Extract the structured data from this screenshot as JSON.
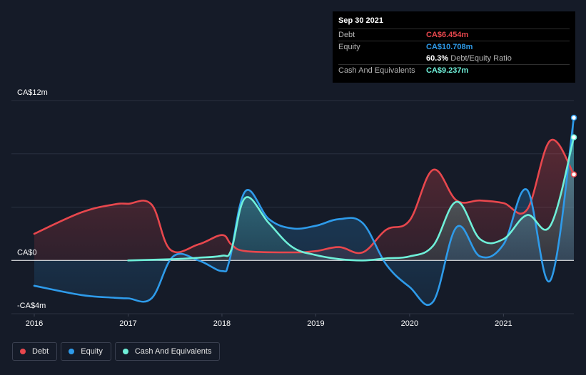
{
  "tooltip": {
    "date": "Sep 30 2021",
    "rows": [
      {
        "label": "Debt",
        "value": "CA$6.454m",
        "color": "#e8474d"
      },
      {
        "label": "Equity",
        "value": "CA$10.708m",
        "color": "#2e9bea"
      },
      {
        "label": "",
        "value": "60.3%",
        "sub": "Debt/Equity Ratio",
        "color": "#ffffff"
      },
      {
        "label": "Cash And Equivalents",
        "value": "CA$9.237m",
        "color": "#6ff0d9"
      }
    ]
  },
  "legend": [
    {
      "label": "Debt",
      "color": "#e8474d"
    },
    {
      "label": "Equity",
      "color": "#2e9bea"
    },
    {
      "label": "Cash And Equivalents",
      "color": "#6ff0d9"
    }
  ],
  "chart_data": {
    "type": "area",
    "y_tick_labels": [
      {
        "value": 12,
        "label": "CA$12m"
      },
      {
        "value": 0,
        "label": "CA$0"
      },
      {
        "value": -4,
        "label": "-CA$4m"
      }
    ],
    "ylim": [
      -4,
      12
    ],
    "xlim": [
      2016,
      2021.75
    ],
    "x_ticks": [
      2016,
      2017,
      2018,
      2019,
      2020,
      2021
    ],
    "x_tick_labels": [
      "2016",
      "2017",
      "2018",
      "2019",
      "2020",
      "2021"
    ],
    "series": [
      {
        "name": "Debt",
        "color": "#e8474d",
        "x": [
          2016.0,
          2016.5,
          2016.85,
          2017.0,
          2017.25,
          2017.45,
          2017.75,
          2018.0,
          2018.1,
          2018.25,
          2018.75,
          2019.0,
          2019.25,
          2019.5,
          2019.75,
          2020.0,
          2020.25,
          2020.5,
          2020.75,
          2021.0,
          2021.25,
          2021.5,
          2021.75
        ],
        "y": [
          2.0,
          3.6,
          4.2,
          4.25,
          4.2,
          0.8,
          1.2,
          1.9,
          1.2,
          0.7,
          0.6,
          0.7,
          1.0,
          0.6,
          2.3,
          3.0,
          6.8,
          4.5,
          4.5,
          4.3,
          3.8,
          9.0,
          6.454
        ]
      },
      {
        "name": "Equity",
        "color": "#2e9bea",
        "x": [
          2016.0,
          2016.5,
          2016.85,
          2017.0,
          2017.25,
          2017.48,
          2017.75,
          2018.0,
          2018.08,
          2018.25,
          2018.5,
          2018.75,
          2019.0,
          2019.25,
          2019.5,
          2019.75,
          2020.0,
          2020.25,
          2020.5,
          2020.75,
          2021.0,
          2021.25,
          2021.5,
          2021.75
        ],
        "y": [
          -1.9,
          -2.6,
          -2.8,
          -2.85,
          -2.85,
          0.3,
          0.0,
          -0.8,
          0.0,
          5.2,
          3.1,
          2.4,
          2.6,
          3.1,
          2.8,
          -0.3,
          -2.0,
          -3.1,
          2.5,
          0.3,
          1.2,
          5.3,
          -1.5,
          10.708
        ]
      },
      {
        "name": "Cash And Equivalents",
        "color": "#6ff0d9",
        "x": [
          2017.0,
          2017.5,
          2017.75,
          2018.0,
          2018.1,
          2018.25,
          2018.5,
          2018.75,
          2019.0,
          2019.25,
          2019.5,
          2019.75,
          2020.0,
          2020.25,
          2020.5,
          2020.75,
          2021.0,
          2021.25,
          2021.5,
          2021.75
        ],
        "y": [
          0.0,
          0.1,
          0.2,
          0.35,
          0.8,
          4.7,
          2.8,
          1.0,
          0.4,
          0.1,
          0.0,
          0.15,
          0.3,
          1.1,
          4.4,
          1.6,
          1.6,
          3.4,
          2.6,
          9.237
        ]
      }
    ],
    "legend_position": "bottom-left",
    "grid": true
  }
}
